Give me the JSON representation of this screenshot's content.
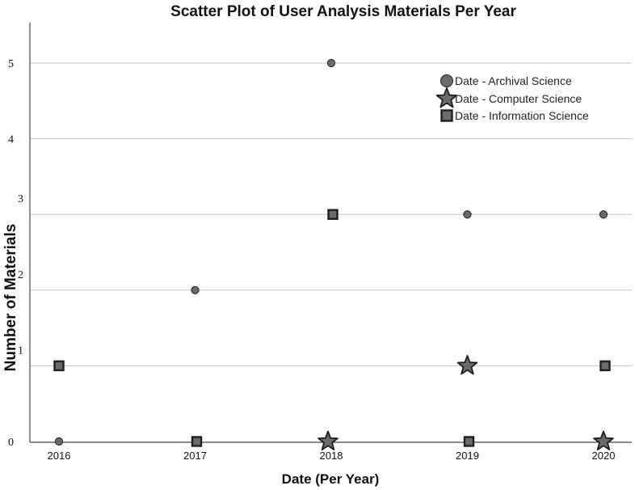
{
  "chart_data": {
    "type": "scatter",
    "title": "Scatter Plot of User Analysis Materials Per Year",
    "xlabel": "Date (Per Year)",
    "ylabel": "Number of Materials",
    "categories": [
      "2016",
      "2017",
      "2018",
      "2019",
      "2020"
    ],
    "ylim": [
      0,
      5.5
    ],
    "y_ticks": [
      {
        "value": 0,
        "label": "0"
      },
      {
        "value": 1,
        "label": "1"
      },
      {
        "value": 2,
        "label": "2"
      },
      {
        "value": 3,
        "label": "3"
      },
      {
        "value": 4,
        "label": "4"
      },
      {
        "value": 5,
        "label": "5"
      }
    ],
    "grid": true,
    "legend_position": "top-right",
    "series": [
      {
        "name": "Date  - Archival Science",
        "marker": "circle",
        "values": [
          0,
          2,
          5,
          3,
          3
        ]
      },
      {
        "name": "Date  - Computer Science",
        "marker": "star",
        "values": [
          null,
          null,
          0,
          1,
          0
        ]
      },
      {
        "name": "Date  - Information Science",
        "marker": "square",
        "values": [
          1,
          0,
          3,
          0,
          1
        ]
      }
    ]
  },
  "colors": {
    "marker_fill": "#6b6b6b",
    "marker_stroke": "#1e1e1e",
    "gridline": "#c4c4c4",
    "axis": "#444444"
  }
}
